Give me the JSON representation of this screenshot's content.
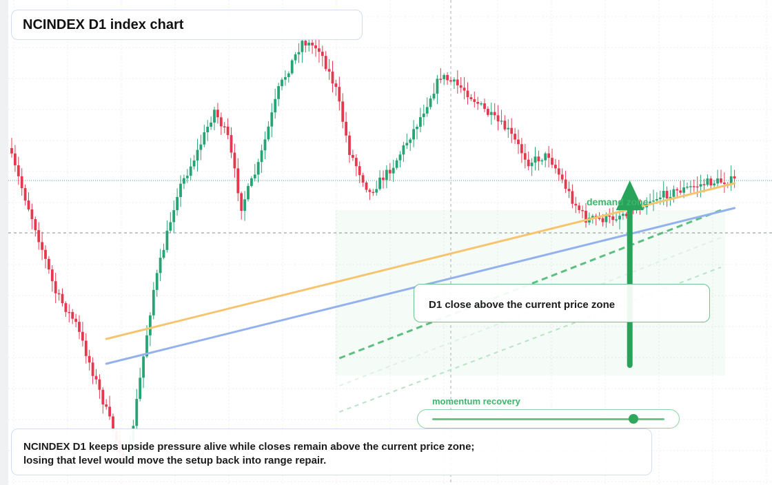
{
  "chart_data": {
    "type": "candlestick",
    "title": "NCINDEX D1 index chart",
    "xlabel": "",
    "ylabel": "",
    "ylim": [
      0,
      704
    ],
    "current_price_level": 262,
    "support_level": 338,
    "trendlines": [
      {
        "color": "#f6c46f",
        "from": {
          "bar": 28,
          "price": 492
        },
        "to": {
          "bar": 214,
          "price": 266
        }
      },
      {
        "color": "#93b1ec",
        "from": {
          "bar": 28,
          "price": 528
        },
        "to": {
          "bar": 214,
          "price": 302
        }
      }
    ],
    "projection_lines": [
      {
        "color": "#5cbf80",
        "style": "dashed",
        "from": {
          "bar": 97,
          "price": 520
        },
        "to": {
          "bar": 210,
          "price": 305
        }
      },
      {
        "color": "#b8e2c6",
        "style": "dashed",
        "from": {
          "bar": 97,
          "price": 598
        },
        "to": {
          "bar": 210,
          "price": 388
        }
      },
      {
        "color": "#dff1e5",
        "style": "dashed",
        "from": {
          "bar": 97,
          "price": 560
        },
        "to": {
          "bar": 210,
          "price": 345
        }
      }
    ],
    "demand_zone": {
      "label": "demand zone",
      "bar_start": 97,
      "bar_end": 210,
      "price_top": 305,
      "price_bottom": 545
    },
    "up_arrow": {
      "bar": 183,
      "price_from": 530,
      "price_to": 262,
      "color": "#27a35a"
    },
    "anchors": [
      {
        "bar": 0,
        "price": 215
      },
      {
        "bar": 8,
        "price": 330
      },
      {
        "bar": 14,
        "price": 425
      },
      {
        "bar": 20,
        "price": 470
      },
      {
        "bar": 30,
        "price": 610
      },
      {
        "bar": 35,
        "price": 680
      },
      {
        "bar": 39,
        "price": 550
      },
      {
        "bar": 43,
        "price": 420
      },
      {
        "bar": 50,
        "price": 280
      },
      {
        "bar": 56,
        "price": 220
      },
      {
        "bar": 61,
        "price": 160
      },
      {
        "bar": 65,
        "price": 200
      },
      {
        "bar": 69,
        "price": 300
      },
      {
        "bar": 74,
        "price": 240
      },
      {
        "bar": 80,
        "price": 130
      },
      {
        "bar": 87,
        "price": 60
      },
      {
        "bar": 92,
        "price": 70
      },
      {
        "bar": 97,
        "price": 130
      },
      {
        "bar": 101,
        "price": 220
      },
      {
        "bar": 107,
        "price": 280
      },
      {
        "bar": 114,
        "price": 240
      },
      {
        "bar": 121,
        "price": 180
      },
      {
        "bar": 128,
        "price": 110
      },
      {
        "bar": 135,
        "price": 130
      },
      {
        "bar": 142,
        "price": 165
      },
      {
        "bar": 148,
        "price": 190
      },
      {
        "bar": 154,
        "price": 235
      },
      {
        "bar": 160,
        "price": 225
      },
      {
        "bar": 167,
        "price": 290
      },
      {
        "bar": 171,
        "price": 318
      },
      {
        "bar": 178,
        "price": 318
      },
      {
        "bar": 184,
        "price": 305
      },
      {
        "bar": 190,
        "price": 290
      },
      {
        "bar": 196,
        "price": 280
      },
      {
        "bar": 202,
        "price": 272
      },
      {
        "bar": 207,
        "price": 265
      },
      {
        "bar": 214,
        "price": 262
      }
    ],
    "bars": 215,
    "colors": {
      "up": "#26a474",
      "down": "#e5384f"
    }
  },
  "header": {
    "title": "NCINDEX D1 index chart"
  },
  "annotations": {
    "zone_label": "demand zone",
    "callout": "D1 close above the current price zone",
    "slider_label": "momentum recovery",
    "slider_value": 0.86
  },
  "caption": {
    "line1": "NCINDEX D1 keeps upside pressure alive while closes remain above the current price zone;",
    "line2": "losing that level would move the setup back into range repair."
  }
}
